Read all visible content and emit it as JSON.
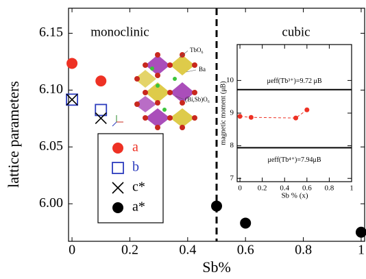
{
  "chart_data": [
    {
      "type": "scatter",
      "x_label": "Sb%",
      "y_label": "lattice parameters",
      "xlim": [
        -0.012,
        1.012
      ],
      "xticks": [
        0,
        0.2,
        0.4,
        0.6,
        0.8,
        1
      ],
      "ylim": [
        5.967,
        6.172
      ],
      "yticks": [
        {
          "value": 6.0,
          "label": "6.00"
        },
        6.05,
        {
          "value": 6.1,
          "label": "6.10"
        },
        6.15
      ],
      "vlines": [
        0.5
      ],
      "annotations": [
        "monoclinic",
        "cubic"
      ],
      "structure_labels": [
        "TbO₆",
        "Ba",
        "(Bi,Sb)O₆"
      ],
      "series": [
        {
          "name": "a",
          "color": "#ee3124",
          "marker": "circle",
          "x": [
            0,
            0.1
          ],
          "values": [
            6.1235,
            6.108
          ]
        },
        {
          "name": "b",
          "color": "#2b3bbd",
          "marker": "square",
          "x": [
            0,
            0.1
          ],
          "values": [
            6.0916,
            6.0825
          ]
        },
        {
          "name": "c*",
          "color": "#000000",
          "marker": "cross",
          "x": [
            0,
            0.1
          ],
          "values": [
            6.0916,
            6.0753
          ]
        },
        {
          "name": "a*",
          "color": "#000000",
          "marker": "circle",
          "x": [
            0.5,
            0.6,
            1.0
          ],
          "values": [
            5.998,
            5.983,
            5.975
          ]
        }
      ]
    },
    {
      "type": "line",
      "x_label": "Sb % (x)",
      "y_label": "magnetic moment (μB)",
      "xlim": [
        -0.025,
        1.0
      ],
      "xticks": [
        0,
        0.2,
        0.4,
        0.6,
        0.8,
        1
      ],
      "ylim": [
        6.9,
        11.1
      ],
      "yticks": [
        7,
        8,
        9,
        10
      ],
      "hlines": [
        {
          "value": 9.72,
          "label": "μeff(Tb³⁺)=9.72 μB"
        },
        {
          "value": 7.94,
          "label": "μeff(Tb⁴⁺)=7.94μB"
        }
      ],
      "series": [
        {
          "color": "#ee3124",
          "x": [
            0,
            0.1,
            0.5,
            0.6
          ],
          "values": [
            8.9,
            8.87,
            8.85,
            9.1
          ]
        }
      ]
    }
  ]
}
